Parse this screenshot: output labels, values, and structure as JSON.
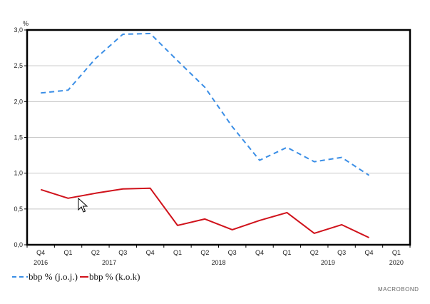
{
  "chart_data": {
    "type": "line",
    "unit_label": "%",
    "x": [
      "Q4 2016",
      "Q1 2017",
      "Q2 2017",
      "Q3 2017",
      "Q4 2017",
      "Q1 2018",
      "Q2 2018",
      "Q3 2018",
      "Q4 2018",
      "Q1 2019",
      "Q2 2019",
      "Q3 2019",
      "Q4 2019",
      "Q1 2020"
    ],
    "quarter_labels": [
      "Q4",
      "Q1",
      "Q2",
      "Q3",
      "Q4",
      "Q1",
      "Q2",
      "Q3",
      "Q4",
      "Q1",
      "Q2",
      "Q3",
      "Q4",
      "Q1"
    ],
    "year_labels": [
      {
        "label": "2016",
        "at_index": 0
      },
      {
        "label": "2017",
        "at_index": 2.5
      },
      {
        "label": "2018",
        "at_index": 6.5
      },
      {
        "label": "2019",
        "at_index": 10.5
      },
      {
        "label": "2020",
        "at_index": 13
      }
    ],
    "ylim": [
      0,
      3.0
    ],
    "yticks": [
      0,
      0.5,
      1.0,
      1.5,
      2.0,
      2.5,
      3.0
    ],
    "ytick_labels": [
      "0,0",
      "0,5",
      "1,0",
      "1,5",
      "2,0",
      "2,5",
      "3,0"
    ],
    "grid": true,
    "legend_position": "bottom-left",
    "series": [
      {
        "name": "bbp % (j.o.j.)",
        "style": "dashed",
        "color": "#3a8ee6",
        "values": [
          2.12,
          2.16,
          2.6,
          2.94,
          2.95,
          2.57,
          2.2,
          1.65,
          1.18,
          1.36,
          1.16,
          1.22,
          0.97,
          null
        ]
      },
      {
        "name": "bbp % (k.o.k)",
        "style": "solid",
        "color": "#d0121b",
        "values": [
          0.77,
          0.65,
          0.72,
          0.78,
          0.79,
          0.27,
          0.36,
          0.21,
          0.34,
          0.45,
          0.16,
          0.28,
          0.1,
          null
        ]
      }
    ]
  },
  "legend": {
    "item_1": "bbp % (j.o.j.)",
    "item_2": "bbp % (k.o.k)"
  },
  "brand": "MACROBOND",
  "icons": {
    "cursor": "mouse-pointer-icon"
  }
}
